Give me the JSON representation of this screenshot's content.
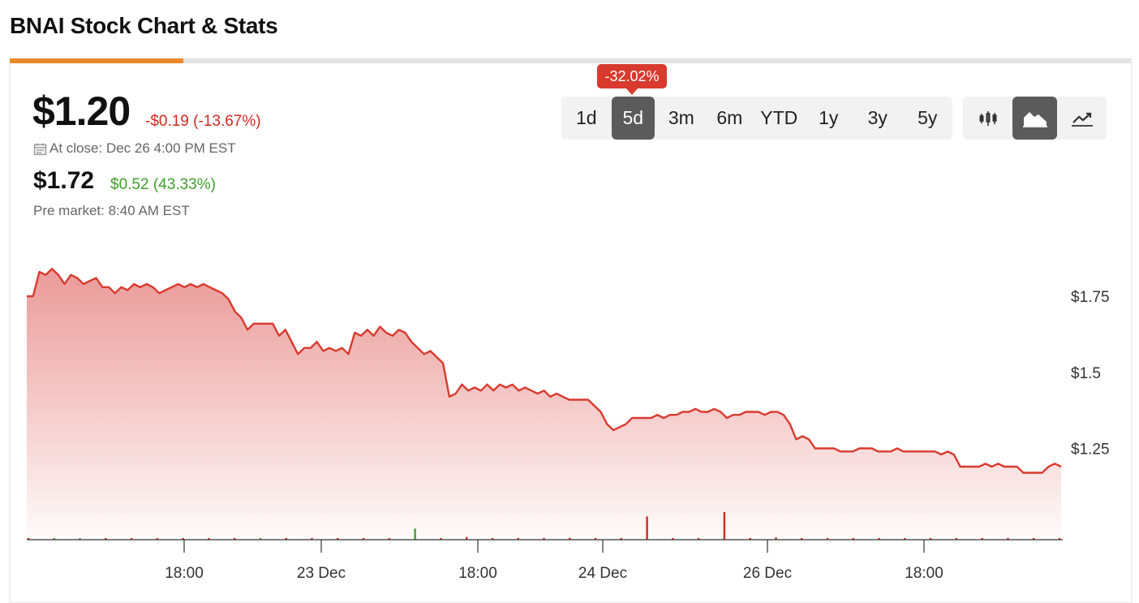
{
  "page": {
    "title": "BNAI Stock Chart & Stats"
  },
  "quote": {
    "price": "$1.20",
    "change": "-$0.19 (-13.67%)",
    "close_label": "At close: Dec 26 4:00 PM EST",
    "pre_price": "$1.72",
    "pre_change": "$0.52 (43.33%)",
    "pre_label": "Pre market: 8:40 AM EST"
  },
  "progress": {
    "fraction": 0.155
  },
  "ranges": {
    "items": [
      "1d",
      "5d",
      "3m",
      "6m",
      "YTD",
      "1y",
      "3y",
      "5y"
    ],
    "active": "5d",
    "tooltip": "-32.02%"
  },
  "chart_types": {
    "items": [
      "candlestick-icon",
      "area-chart-icon",
      "line-chart-icon"
    ],
    "active": "area-chart-icon"
  },
  "colors": {
    "accent": "#e8892b",
    "negative": "#d0281f",
    "positive": "#3f9e2c",
    "line": "#d83a2e",
    "fill": "#e99593",
    "active_button": "#5b5b5b"
  },
  "chart_data": {
    "type": "area",
    "x_labels": [
      "18:00",
      "23 Dec",
      "18:00",
      "24 Dec",
      "26 Dec",
      "18:00"
    ],
    "y_ticks": [
      "$1.75",
      "$1.5",
      "$1.25"
    ],
    "y_tick_values": [
      1.75,
      1.5,
      1.25
    ],
    "ylim": [
      0.95,
      1.95
    ],
    "series": [
      {
        "values": [
          1.75,
          1.75,
          1.83,
          1.82,
          1.84,
          1.82,
          1.79,
          1.82,
          1.81,
          1.79,
          1.8,
          1.81,
          1.78,
          1.78,
          1.76,
          1.78,
          1.77,
          1.79,
          1.78,
          1.79,
          1.78,
          1.76,
          1.77,
          1.78,
          1.79,
          1.78,
          1.79,
          1.78,
          1.79,
          1.78,
          1.77,
          1.76,
          1.74,
          1.7,
          1.68,
          1.64,
          1.66,
          1.66,
          1.66,
          1.66,
          1.62,
          1.64,
          1.6,
          1.56,
          1.58,
          1.58,
          1.6,
          1.57,
          1.58,
          1.57,
          1.58,
          1.56,
          1.63,
          1.62,
          1.64,
          1.62,
          1.65,
          1.63,
          1.62,
          1.64,
          1.63,
          1.6,
          1.58,
          1.56,
          1.57,
          1.55,
          1.53,
          1.42,
          1.43,
          1.46,
          1.44,
          1.45,
          1.44,
          1.46,
          1.44,
          1.46,
          1.45,
          1.46,
          1.44,
          1.45,
          1.44,
          1.43,
          1.44,
          1.42,
          1.43,
          1.42,
          1.41,
          1.41,
          1.41,
          1.41,
          1.39,
          1.37,
          1.33,
          1.31,
          1.32,
          1.33,
          1.35,
          1.35,
          1.35,
          1.35,
          1.36,
          1.35,
          1.36,
          1.36,
          1.37,
          1.37,
          1.38,
          1.37,
          1.37,
          1.38,
          1.37,
          1.35,
          1.36,
          1.36,
          1.37,
          1.37,
          1.37,
          1.36,
          1.37,
          1.37,
          1.36,
          1.33,
          1.28,
          1.29,
          1.28,
          1.25,
          1.25,
          1.25,
          1.25,
          1.24,
          1.24,
          1.24,
          1.25,
          1.25,
          1.25,
          1.24,
          1.24,
          1.24,
          1.25,
          1.24,
          1.24,
          1.24,
          1.24,
          1.24,
          1.24,
          1.23,
          1.24,
          1.23,
          1.19,
          1.19,
          1.19,
          1.19,
          1.2,
          1.19,
          1.2,
          1.19,
          1.19,
          1.19,
          1.17,
          1.17,
          1.17,
          1.17,
          1.19,
          1.2,
          1.19
        ]
      }
    ],
    "volume": {
      "values": [
        0.02,
        0.01,
        0.03,
        0.03,
        0.02,
        0.01,
        0.03,
        0.01,
        0.02,
        0.01,
        0.01,
        0.02,
        0.01,
        0.02,
        0.03,
        0.25,
        0.02,
        0.06,
        0.01,
        0.04,
        0.03,
        0.04,
        0.01,
        0.01,
        0.52,
        0.01,
        0.01,
        0.62,
        0.02,
        0.05,
        0.01,
        0.01,
        0.01,
        0.02,
        0.02,
        0.01,
        0.01,
        0.01,
        0.01,
        0.01,
        0.01
      ],
      "colors": [
        "r",
        "g",
        "g",
        "r",
        "r",
        "r",
        "r",
        "r",
        "r",
        "g",
        "r",
        "r",
        "r",
        "r",
        "r",
        "g",
        "r",
        "r",
        "r",
        "r",
        "r",
        "r",
        "r",
        "r",
        "r",
        "r",
        "r",
        "r",
        "r",
        "r",
        "r",
        "r",
        "r",
        "r",
        "r",
        "r",
        "r",
        "r",
        "r",
        "r",
        "r"
      ]
    }
  }
}
